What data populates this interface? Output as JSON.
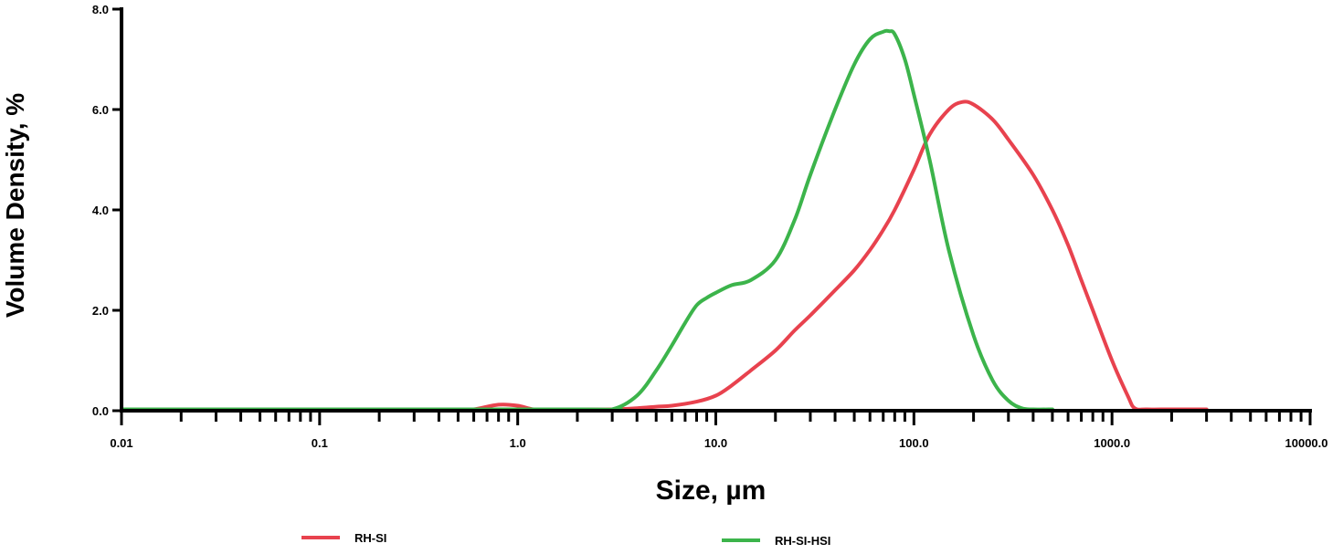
{
  "chart_data": {
    "type": "line",
    "xlabel": "Size, µm",
    "ylabel": "Volume Density, %",
    "x_scale": "log",
    "xlim": [
      0.01,
      10000
    ],
    "ylim": [
      0,
      8
    ],
    "x_ticks": [
      {
        "value": 0.01,
        "label": "0.01"
      },
      {
        "value": 0.1,
        "label": "0.1"
      },
      {
        "value": 1,
        "label": "1.0"
      },
      {
        "value": 10,
        "label": "10.0"
      },
      {
        "value": 100,
        "label": "100.0"
      },
      {
        "value": 1000,
        "label": "1000.0"
      },
      {
        "value": 10000,
        "label": "10000.0"
      }
    ],
    "y_ticks": [
      {
        "value": 0,
        "label": "0.0"
      },
      {
        "value": 2,
        "label": "2.0"
      },
      {
        "value": 4,
        "label": "4.0"
      },
      {
        "value": 6,
        "label": "6.0"
      },
      {
        "value": 8,
        "label": "8.0"
      }
    ],
    "grid": false,
    "legend_position": "bottom",
    "series": [
      {
        "name": "RH-SI",
        "color": "#e8424e",
        "x": [
          0.01,
          0.5,
          0.6,
          0.8,
          1.0,
          1.2,
          1.5,
          2,
          3,
          4,
          5,
          6,
          8,
          10,
          12,
          15,
          20,
          25,
          30,
          40,
          50,
          60,
          70,
          80,
          100,
          120,
          150,
          175,
          200,
          250,
          300,
          400,
          500,
          600,
          700,
          800,
          1000,
          1200,
          1300,
          1500,
          2000,
          3000
        ],
        "y": [
          0,
          0,
          0.02,
          0.12,
          0.1,
          0.02,
          0,
          0,
          0,
          0.05,
          0.08,
          0.1,
          0.18,
          0.3,
          0.5,
          0.8,
          1.2,
          1.6,
          1.9,
          2.4,
          2.8,
          3.2,
          3.6,
          4.0,
          4.8,
          5.5,
          6.0,
          6.15,
          6.1,
          5.8,
          5.4,
          4.7,
          4.0,
          3.3,
          2.6,
          2.0,
          1.0,
          0.3,
          0.05,
          0,
          0,
          0
        ]
      },
      {
        "name": "RH-SI-HSI",
        "color": "#3cb44b",
        "x": [
          0.01,
          2,
          3,
          4,
          5,
          6,
          7,
          8,
          9,
          10,
          12,
          15,
          20,
          25,
          30,
          40,
          50,
          60,
          70,
          75,
          80,
          90,
          100,
          120,
          150,
          200,
          250,
          300,
          350,
          400,
          500
        ],
        "y": [
          0,
          0,
          0.03,
          0.3,
          0.8,
          1.3,
          1.75,
          2.1,
          2.25,
          2.35,
          2.5,
          2.6,
          3.0,
          3.8,
          4.7,
          6.0,
          6.9,
          7.4,
          7.55,
          7.56,
          7.5,
          7.0,
          6.3,
          5.0,
          3.2,
          1.5,
          0.6,
          0.2,
          0.05,
          0,
          0
        ]
      }
    ]
  }
}
